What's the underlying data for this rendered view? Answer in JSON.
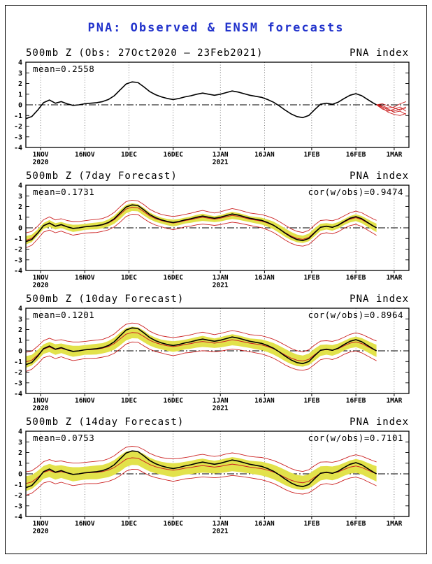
{
  "page": {
    "title": "PNA: Observed & ENSM forecasts"
  },
  "colors": {
    "title_blue": "#2233cc",
    "observed_black": "#000000",
    "ensemble_red": "#cc2222",
    "spread_yellow": "#e2e24b"
  },
  "axis": {
    "y_ticks": [
      4,
      3,
      2,
      1,
      0,
      -1,
      -2,
      -3,
      -4
    ],
    "y_range": [
      -4,
      4
    ],
    "x_range": [
      0,
      130
    ],
    "x_ticks": [
      {
        "label": "1NOV",
        "sub": "2020",
        "day": 5
      },
      {
        "label": "16NOV",
        "day": 20
      },
      {
        "label": "1DEC",
        "day": 35
      },
      {
        "label": "16DEC",
        "day": 50
      },
      {
        "label": "1JAN",
        "sub": "2021",
        "day": 66
      },
      {
        "label": "16JAN",
        "day": 81
      },
      {
        "label": "1FEB",
        "day": 97
      },
      {
        "label": "16FEB",
        "day": 112
      },
      {
        "label": "1MAR",
        "day": 125
      }
    ]
  },
  "chart_data": [
    {
      "type": "line",
      "title": "500mb Z (Obs: 27Oct2020 – 23Feb2021)",
      "right_label": "PNA index",
      "annotations": {
        "mean": "mean=0.2558"
      },
      "ylim": [
        -4,
        4
      ],
      "line_color_red": "#cc2222",
      "x_days": [
        0,
        2,
        4,
        6,
        8,
        10,
        12,
        14,
        16,
        18,
        20,
        22,
        24,
        26,
        28,
        30,
        32,
        34,
        36,
        38,
        40,
        42,
        44,
        46,
        48,
        50,
        52,
        54,
        56,
        58,
        60,
        62,
        64,
        66,
        68,
        70,
        72,
        74,
        76,
        78,
        80,
        82,
        84,
        86,
        88,
        90,
        92,
        94,
        96,
        98,
        100,
        102,
        104,
        106,
        108,
        110,
        112,
        114,
        116,
        118,
        119
      ],
      "observed_values": [
        -1.3,
        -1.1,
        -0.5,
        0.2,
        0.45,
        0.15,
        0.3,
        0.1,
        -0.05,
        0.0,
        0.1,
        0.15,
        0.2,
        0.3,
        0.5,
        0.85,
        1.4,
        1.95,
        2.15,
        2.1,
        1.7,
        1.25,
        0.95,
        0.75,
        0.6,
        0.5,
        0.6,
        0.75,
        0.85,
        1.0,
        1.1,
        1.0,
        0.9,
        1.0,
        1.15,
        1.3,
        1.2,
        1.05,
        0.9,
        0.8,
        0.7,
        0.5,
        0.25,
        -0.1,
        -0.5,
        -0.85,
        -1.1,
        -1.2,
        -1.0,
        -0.45,
        0.05,
        0.15,
        0.05,
        0.25,
        0.6,
        0.9,
        1.05,
        0.85,
        0.5,
        0.15,
        0.0
      ],
      "forecast_x": [
        119,
        121,
        123,
        125,
        127,
        129
      ],
      "forecast_members": [
        [
          0.0,
          -0.2,
          -0.5,
          -0.6,
          -0.4,
          -0.3
        ],
        [
          0.0,
          -0.1,
          -0.3,
          -0.2,
          0.1,
          0.3
        ],
        [
          0.0,
          -0.3,
          -0.7,
          -0.9,
          -1.0,
          -0.8
        ],
        [
          0.0,
          0.1,
          -0.1,
          -0.3,
          -0.5,
          -0.2
        ],
        [
          0.0,
          -0.4,
          -0.6,
          -0.4,
          -0.2,
          -0.6
        ],
        [
          0.0,
          -0.2,
          -0.4,
          -0.7,
          -0.6,
          -0.9
        ]
      ]
    },
    {
      "type": "line-band",
      "title": "500mb Z (7day Forecast)",
      "right_label": "PNA index",
      "annotations": {
        "mean": "mean=0.1731",
        "cor": "cor(w/obs)=0.9474"
      },
      "ylim": [
        -4,
        4
      ],
      "band_color": "#e2e24b",
      "line_color_red": "#cc2222",
      "envelope_extra": 0.3,
      "mean_values": [
        -1.17,
        -0.99,
        -0.45,
        0.18,
        0.41,
        0.14,
        0.27,
        0.09,
        -0.05,
        0.0,
        0.09,
        0.14,
        0.18,
        0.27,
        0.45,
        0.77,
        1.26,
        1.76,
        1.94,
        1.89,
        1.53,
        1.13,
        0.86,
        0.68,
        0.54,
        0.45,
        0.54,
        0.68,
        0.77,
        0.9,
        0.99,
        0.9,
        0.81,
        0.9,
        1.04,
        1.17,
        1.08,
        0.95,
        0.81,
        0.72,
        0.63,
        0.45,
        0.23,
        -0.09,
        -0.45,
        -0.77,
        -0.99,
        -1.08,
        -0.9,
        -0.41,
        0.05,
        0.14,
        0.05,
        0.23,
        0.54,
        0.81,
        0.95,
        0.77,
        0.45,
        0.14,
        0.0
      ],
      "spread": [
        0.4,
        0.35,
        0.3,
        0.28,
        0.32,
        0.3,
        0.28,
        0.3,
        0.34,
        0.3,
        0.28,
        0.3,
        0.32,
        0.3,
        0.34,
        0.38,
        0.42,
        0.4,
        0.36,
        0.34,
        0.36,
        0.32,
        0.3,
        0.28,
        0.3,
        0.32,
        0.3,
        0.28,
        0.3,
        0.32,
        0.34,
        0.3,
        0.28,
        0.3,
        0.32,
        0.34,
        0.32,
        0.3,
        0.28,
        0.3,
        0.32,
        0.34,
        0.36,
        0.38,
        0.4,
        0.38,
        0.36,
        0.34,
        0.36,
        0.38,
        0.34,
        0.3,
        0.32,
        0.3,
        0.28,
        0.3,
        0.32,
        0.34,
        0.36,
        0.38,
        0.4
      ]
    },
    {
      "type": "line-band",
      "title": "500mb Z (10day Forecast)",
      "right_label": "PNA index",
      "annotations": {
        "mean": "mean=0.1201",
        "cor": "cor(w/obs)=0.8964"
      },
      "ylim": [
        -4,
        4
      ],
      "band_color": "#e2e24b",
      "line_color_red": "#cc2222",
      "envelope_extra": 0.35,
      "mean_values": [
        -1.04,
        -0.88,
        -0.4,
        0.16,
        0.36,
        0.12,
        0.24,
        0.08,
        -0.04,
        0.0,
        0.08,
        0.12,
        0.16,
        0.24,
        0.4,
        0.68,
        1.12,
        1.56,
        1.72,
        1.68,
        1.36,
        1.0,
        0.76,
        0.6,
        0.48,
        0.4,
        0.48,
        0.6,
        0.68,
        0.8,
        0.88,
        0.8,
        0.72,
        0.8,
        0.92,
        1.04,
        0.96,
        0.84,
        0.72,
        0.64,
        0.56,
        0.4,
        0.2,
        -0.08,
        -0.4,
        -0.68,
        -0.88,
        -0.96,
        -0.8,
        -0.36,
        0.04,
        0.12,
        0.04,
        0.2,
        0.48,
        0.72,
        0.84,
        0.68,
        0.4,
        0.12,
        0.0
      ],
      "spread": [
        0.55,
        0.5,
        0.48,
        0.45,
        0.48,
        0.5,
        0.45,
        0.48,
        0.52,
        0.48,
        0.45,
        0.48,
        0.5,
        0.48,
        0.52,
        0.56,
        0.6,
        0.58,
        0.54,
        0.52,
        0.54,
        0.5,
        0.48,
        0.45,
        0.48,
        0.5,
        0.48,
        0.45,
        0.48,
        0.5,
        0.52,
        0.48,
        0.45,
        0.48,
        0.5,
        0.52,
        0.5,
        0.48,
        0.45,
        0.48,
        0.5,
        0.52,
        0.54,
        0.56,
        0.58,
        0.56,
        0.54,
        0.52,
        0.54,
        0.56,
        0.52,
        0.48,
        0.5,
        0.48,
        0.45,
        0.48,
        0.5,
        0.52,
        0.54,
        0.56,
        0.58
      ]
    },
    {
      "type": "line-band",
      "title": "500mb Z (14day Forecast)",
      "right_label": "PNA index",
      "annotations": {
        "mean": "mean=0.0753",
        "cor": "cor(w/obs)=0.7101"
      },
      "ylim": [
        -4,
        4
      ],
      "band_color": "#e2e24b",
      "line_color_red": "#cc2222",
      "envelope_extra": 0.4,
      "mean_values": [
        -0.91,
        -0.77,
        -0.35,
        0.14,
        0.32,
        0.11,
        0.21,
        0.07,
        -0.04,
        0.0,
        0.07,
        0.11,
        0.14,
        0.21,
        0.35,
        0.6,
        0.98,
        1.37,
        1.51,
        1.47,
        1.19,
        0.88,
        0.67,
        0.53,
        0.42,
        0.35,
        0.42,
        0.53,
        0.6,
        0.7,
        0.77,
        0.7,
        0.63,
        0.7,
        0.81,
        0.91,
        0.84,
        0.74,
        0.63,
        0.56,
        0.49,
        0.35,
        0.18,
        -0.07,
        -0.35,
        -0.6,
        -0.77,
        -0.84,
        -0.7,
        -0.32,
        0.04,
        0.11,
        0.04,
        0.18,
        0.42,
        0.63,
        0.74,
        0.6,
        0.35,
        0.11,
        0.0
      ],
      "spread": [
        0.7,
        0.65,
        0.62,
        0.6,
        0.62,
        0.65,
        0.6,
        0.62,
        0.66,
        0.62,
        0.6,
        0.62,
        0.65,
        0.62,
        0.66,
        0.7,
        0.75,
        0.72,
        0.68,
        0.66,
        0.68,
        0.65,
        0.62,
        0.6,
        0.62,
        0.65,
        0.62,
        0.6,
        0.62,
        0.65,
        0.66,
        0.62,
        0.6,
        0.62,
        0.65,
        0.66,
        0.65,
        0.62,
        0.6,
        0.62,
        0.65,
        0.66,
        0.68,
        0.7,
        0.72,
        0.7,
        0.68,
        0.66,
        0.68,
        0.7,
        0.66,
        0.62,
        0.65,
        0.62,
        0.6,
        0.62,
        0.65,
        0.66,
        0.68,
        0.7,
        0.72
      ]
    }
  ]
}
